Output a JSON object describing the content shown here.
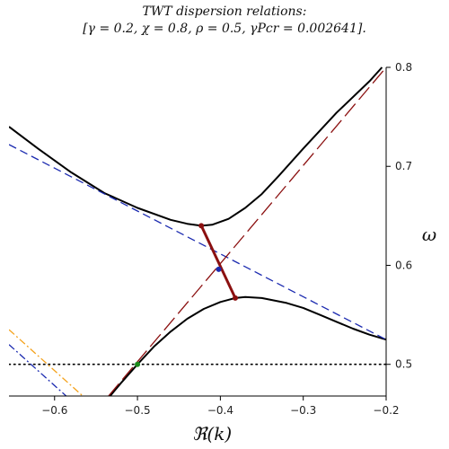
{
  "title": {
    "line1": "TWT dispersion relations:",
    "line2": "[γ = 0.2, χ = 0.8, ρ = 0.5, γPcr = 0.002641]."
  },
  "chart_data": {
    "type": "line",
    "title": "TWT dispersion relations: [γ = 0.2, χ = 0.8, ρ = 0.5, γPcr = 0.002641].",
    "xlabel": "ℜ(k)",
    "ylabel": "ω",
    "xlim": [
      -0.655,
      -0.2
    ],
    "ylim": [
      0.468,
      0.8
    ],
    "x_ticks": [
      -0.6,
      -0.5,
      -0.4,
      -0.3,
      -0.2
    ],
    "x_tick_labels": [
      "−0.6",
      "−0.5",
      "−0.4",
      "−0.3",
      "−0.2"
    ],
    "y_ticks": [
      0.5,
      0.6,
      0.7,
      0.8
    ],
    "y_tick_labels": [
      "0.5",
      "0.6",
      "0.7",
      "0.8"
    ],
    "y_axis_side": "right",
    "grid": false,
    "legend": "none",
    "series": [
      {
        "style": "solid",
        "color": "#000000",
        "points": [
          [
            -0.655,
            0.74
          ],
          [
            -0.62,
            0.718
          ],
          [
            -0.58,
            0.694
          ],
          [
            -0.54,
            0.673
          ],
          [
            -0.5,
            0.658
          ],
          [
            -0.46,
            0.646
          ],
          [
            -0.44,
            0.642
          ],
          [
            -0.423,
            0.64
          ],
          [
            -0.41,
            0.641
          ],
          [
            -0.39,
            0.647
          ],
          [
            -0.37,
            0.658
          ],
          [
            -0.35,
            0.672
          ],
          [
            -0.33,
            0.69
          ],
          [
            -0.3,
            0.718
          ],
          [
            -0.26,
            0.754
          ],
          [
            -0.22,
            0.786
          ],
          [
            -0.205,
            0.8
          ]
        ]
      },
      {
        "style": "solid",
        "color": "#000000",
        "points": [
          [
            -0.533,
            0.468
          ],
          [
            -0.52,
            0.481
          ],
          [
            -0.5,
            0.5
          ],
          [
            -0.48,
            0.518
          ],
          [
            -0.46,
            0.533
          ],
          [
            -0.44,
            0.546
          ],
          [
            -0.42,
            0.556
          ],
          [
            -0.4,
            0.563
          ],
          [
            -0.382,
            0.567
          ],
          [
            -0.37,
            0.568
          ],
          [
            -0.35,
            0.567
          ],
          [
            -0.32,
            0.562
          ],
          [
            -0.3,
            0.557
          ],
          [
            -0.28,
            0.55
          ],
          [
            -0.26,
            0.543
          ],
          [
            -0.24,
            0.536
          ],
          [
            -0.22,
            0.53
          ],
          [
            -0.2,
            0.525
          ]
        ]
      },
      {
        "style": "dashed",
        "color": "#1c2bb0",
        "points": [
          [
            -0.655,
            0.722
          ],
          [
            -0.2,
            0.525
          ]
        ]
      },
      {
        "style": "longdash",
        "color": "#8b1010",
        "points": [
          [
            -0.535,
            0.468
          ],
          [
            -0.2,
            0.8
          ]
        ]
      },
      {
        "style": "dotted",
        "color": "#000000",
        "points": [
          [
            -0.655,
            0.5
          ],
          [
            -0.2,
            0.5
          ]
        ]
      },
      {
        "style": "dashdot",
        "color": "#f4a21c",
        "points": [
          [
            -0.655,
            0.535
          ],
          [
            -0.566,
            0.468
          ]
        ]
      },
      {
        "style": "dashdot",
        "color": "#1c2bb0",
        "points": [
          [
            -0.655,
            0.52
          ],
          [
            -0.586,
            0.468
          ]
        ]
      },
      {
        "style": "thick",
        "color": "#8b1010",
        "points": [
          [
            -0.423,
            0.64
          ],
          [
            -0.382,
            0.567
          ]
        ]
      }
    ],
    "markers": [
      {
        "x": -0.423,
        "y": 0.64,
        "color": "#8b1010"
      },
      {
        "x": -0.382,
        "y": 0.567,
        "color": "#8b1010"
      },
      {
        "x": -0.402,
        "y": 0.596,
        "color": "#1c2bb0"
      },
      {
        "x": -0.5,
        "y": 0.5,
        "color": "#1a8a1a"
      }
    ]
  }
}
